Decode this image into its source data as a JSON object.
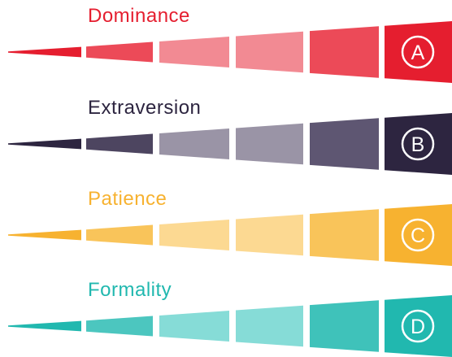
{
  "factors": [
    {
      "id": "dominance",
      "label": "Dominance",
      "letter": "A",
      "segment_colors": [
        "#e51e2f",
        "#ec4a58",
        "#f28a93",
        "#f28a93",
        "#ec4a58",
        "#e51e2f"
      ]
    },
    {
      "id": "extraversion",
      "label": "Extraversion",
      "letter": "B",
      "segment_colors": [
        "#2d2540",
        "#4d4560",
        "#9a94a6",
        "#9a94a6",
        "#5e5672",
        "#2d2540"
      ]
    },
    {
      "id": "patience",
      "label": "Patience",
      "letter": "C",
      "segment_colors": [
        "#f7b230",
        "#f9c45a",
        "#fcd992",
        "#fcd992",
        "#f9c45a",
        "#f7b230"
      ]
    },
    {
      "id": "formality",
      "label": "Formality",
      "letter": "D",
      "segment_colors": [
        "#21b8af",
        "#4cc6bf",
        "#86dcd7",
        "#86dcd7",
        "#3fc2ba",
        "#21b8af"
      ]
    }
  ]
}
